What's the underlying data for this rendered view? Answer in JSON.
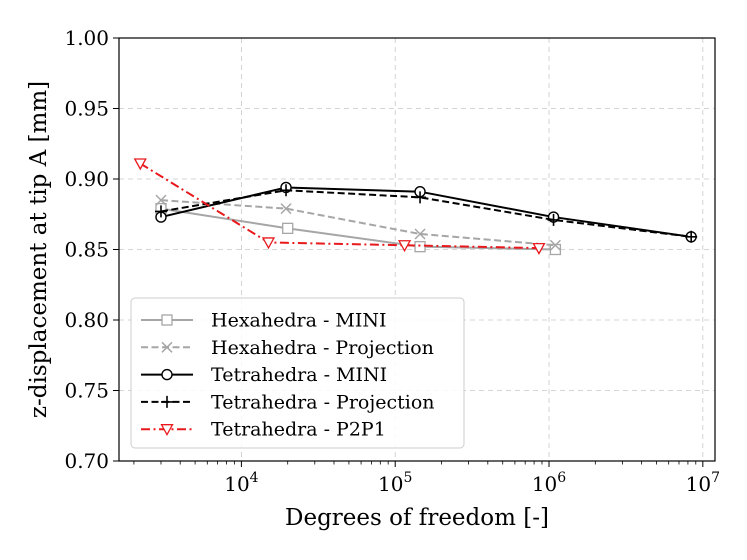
{
  "chart_data": {
    "type": "line",
    "title": "",
    "xlabel": "Degrees of freedom [-]",
    "ylabel": "z-displacement at tip A [mm]",
    "xscale": "log",
    "xlim": [
      1600,
      12000000
    ],
    "ylim": [
      0.7,
      1.0
    ],
    "grid": true,
    "legend_position": "bottom-left",
    "x_ticks": [
      {
        "value": 10000,
        "base": "10",
        "exp": "4"
      },
      {
        "value": 100000,
        "base": "10",
        "exp": "5"
      },
      {
        "value": 1000000,
        "base": "10",
        "exp": "6"
      },
      {
        "value": 10000000,
        "base": "10",
        "exp": "7"
      }
    ],
    "y_ticks": [
      "0.70",
      "0.75",
      "0.80",
      "0.85",
      "0.90",
      "0.95",
      "1.00"
    ],
    "series": [
      {
        "name": "Hexahedra - MINI",
        "color": "#a6a6a6",
        "dash": "solid",
        "marker": "square",
        "x": [
          3000,
          20000,
          145000,
          1100000
        ],
        "y": [
          0.879,
          0.865,
          0.852,
          0.85
        ]
      },
      {
        "name": "Hexahedra - Projection",
        "color": "#a6a6a6",
        "dash": "dashed",
        "marker": "x",
        "x": [
          3000,
          19500,
          145000,
          1100000
        ],
        "y": [
          0.885,
          0.879,
          0.861,
          0.853
        ]
      },
      {
        "name": "Tetrahedra - MINI",
        "color": "#000000",
        "dash": "solid",
        "marker": "circle",
        "x": [
          3000,
          19500,
          145000,
          1070000,
          8400000
        ],
        "y": [
          0.873,
          0.894,
          0.891,
          0.873,
          0.859
        ]
      },
      {
        "name": "Tetrahedra - Projection",
        "color": "#000000",
        "dash": "dashed",
        "marker": "plus",
        "x": [
          3000,
          19500,
          145000,
          1070000,
          8400000
        ],
        "y": [
          0.877,
          0.892,
          0.887,
          0.871,
          0.859
        ]
      },
      {
        "name": "Tetrahedra - P2P1",
        "color": "#e8191c",
        "dash": "dashdot",
        "marker": "triangle-down",
        "x": [
          2200,
          15000,
          115000,
          860000
        ],
        "y": [
          0.911,
          0.855,
          0.853,
          0.851
        ]
      }
    ]
  }
}
